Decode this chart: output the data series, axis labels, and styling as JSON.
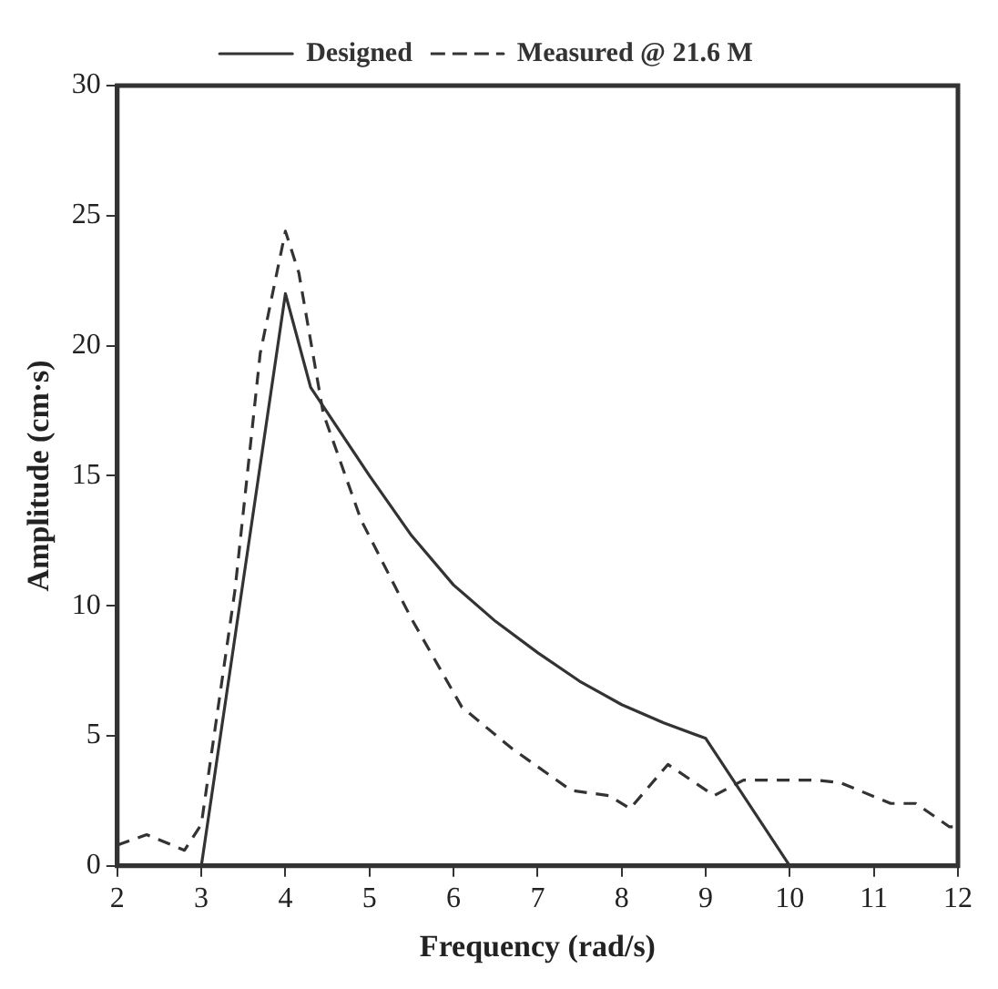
{
  "chart_data": {
    "type": "line",
    "xlabel": "Frequency (rad/s)",
    "ylabel": "Amplitude (cm·s)",
    "xlim": [
      2,
      12
    ],
    "xticks": [
      2,
      3,
      4,
      5,
      6,
      7,
      8,
      9,
      10,
      11,
      12
    ],
    "ylim": [
      0,
      30
    ],
    "yticks": [
      0,
      5,
      10,
      15,
      20,
      25,
      30
    ],
    "grid": false,
    "legend": "top",
    "marker": "none",
    "series": [
      {
        "name": "Designed",
        "color": "#333333",
        "line_style": "solid",
        "x": [
          3,
          4,
          4.3,
          5,
          5.5,
          6,
          6.5,
          7,
          7.5,
          8,
          8.5,
          9,
          10
        ],
        "values": [
          0,
          22,
          18.4,
          15,
          12.7,
          10.8,
          9.4,
          8.2,
          7.1,
          6.2,
          5.5,
          4.9,
          0
        ]
      },
      {
        "name": "Measured @ 21.6 M",
        "color": "#333333",
        "line_style": "dashed",
        "x": [
          2,
          2.35,
          2.8,
          3,
          3.4,
          3.7,
          4,
          4.16,
          4.45,
          4.9,
          5.5,
          6.1,
          6.7,
          7.4,
          7.85,
          8.1,
          8.55,
          9.1,
          9.45,
          10.3,
          10.6,
          11.2,
          11.5,
          11.9,
          12
        ],
        "values": [
          0.8,
          1.2,
          0.6,
          1.6,
          10.6,
          19.7,
          24.4,
          22.8,
          17.4,
          13.3,
          9.5,
          6.1,
          4.5,
          2.9,
          2.7,
          2.2,
          3.9,
          2.7,
          3.3,
          3.3,
          3.2,
          2.4,
          2.4,
          1.5,
          1.5
        ]
      }
    ]
  }
}
